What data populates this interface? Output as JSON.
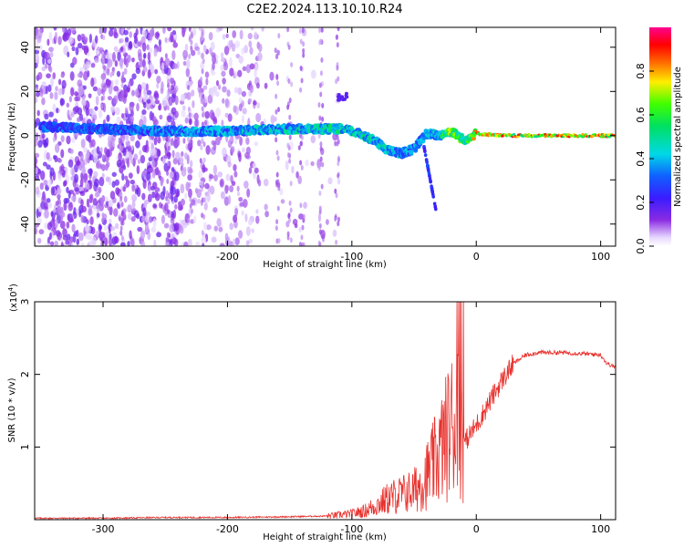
{
  "figure": {
    "title": "C2E2.2024.113.10.10.R24"
  },
  "colors": {
    "snr_line": "#e8322e",
    "axis": "#000000",
    "background": "#ffffff"
  },
  "chart_data": [
    {
      "type": "heatmap",
      "title": "C2E2.2024.113.10.10.R24",
      "xlabel": "Height of straight line (km)",
      "ylabel": "Frequency (Hz)",
      "xlim": [
        -355,
        112
      ],
      "ylim": [
        -50,
        49
      ],
      "xticks": [
        "-300",
        "-200",
        "-100",
        "0",
        "100"
      ],
      "yticks": [
        "40",
        "20",
        "0",
        "-20",
        "-40"
      ],
      "colorbar": {
        "label": "Normalized spectral amplitude",
        "range": [
          0.0,
          1.0
        ],
        "ticks": [
          "0.0",
          "0.2",
          "0.4",
          "0.6",
          "0.8"
        ],
        "colormap": "rainbow (white-violet-blue-cyan-green-yellow-red-magenta)"
      },
      "ridge": {
        "x": [
          -350,
          -300,
          -250,
          -200,
          -150,
          -110,
          -100,
          -90,
          -80,
          -70,
          -60,
          -50,
          -40,
          -30,
          -20,
          -10,
          0,
          20,
          50,
          112
        ],
        "y": [
          4,
          3,
          2,
          2,
          3,
          3,
          2,
          0,
          -3,
          -7,
          -8,
          -6,
          1,
          0,
          2,
          -2,
          1,
          0,
          0,
          0
        ],
        "amplitude": [
          0.35,
          0.35,
          0.4,
          0.45,
          0.5,
          0.55,
          0.5,
          0.55,
          0.5,
          0.5,
          0.45,
          0.4,
          0.45,
          0.5,
          0.8,
          0.6,
          0.85,
          0.9,
          0.9,
          0.9
        ]
      }
    },
    {
      "type": "line",
      "xlabel": "Height of straight line (km)",
      "ylabel": "SNR (10 * v/v)",
      "yscale_label": "(x10",
      "yscale_exp": "4",
      "yscale_close": ")",
      "xlim": [
        -355,
        112
      ],
      "ylim": [
        0,
        3
      ],
      "xticks": [
        "-300",
        "-200",
        "-100",
        "0",
        "100"
      ],
      "yticks": [
        "3",
        "2",
        "1"
      ],
      "series": [
        {
          "x": [
            -355,
            -300,
            -250,
            -200,
            -150,
            -120,
            -100,
            -90,
            -80,
            -70,
            -60,
            -50,
            -40,
            -30,
            -25,
            -20,
            -15,
            -10,
            0,
            10,
            20,
            30,
            40,
            50,
            60,
            70,
            80,
            90,
            100,
            105,
            112
          ],
          "y": [
            0.02,
            0.02,
            0.03,
            0.03,
            0.04,
            0.05,
            0.08,
            0.12,
            0.2,
            0.3,
            0.35,
            0.4,
            0.6,
            0.9,
            1.1,
            1.3,
            1.4,
            1.05,
            1.3,
            1.6,
            1.9,
            2.15,
            2.27,
            2.3,
            2.3,
            2.3,
            2.29,
            2.28,
            2.27,
            2.15,
            2.1
          ]
        }
      ]
    }
  ]
}
